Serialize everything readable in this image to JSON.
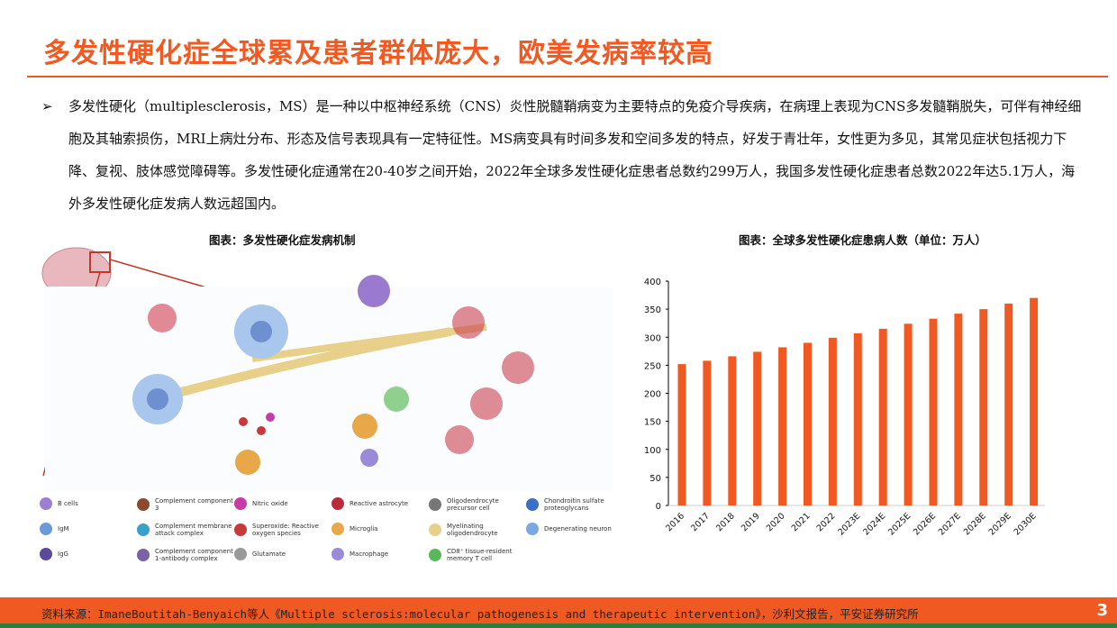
{
  "title": "多发性硬化症全球累及患者群体庞大，欧美发病率较高",
  "bullet": "➢",
  "paragraph": "多发性硬化（multiplesclerosis，MS）是一种以中枢神经系统（CNS）炎性脱髓鞘病变为主要特点的免疫介导疾病，在病理上表现为CNS多发髓鞘脱失，可伴有神经细胞及其轴索损伤，MRI上病灶分布、形态及信号表现具有一定特征性。MS病变具有时间多发和空间多发的特点，好发于青壮年，女性更为多见，其常见症状包括视力下降、复视、肢体感觉障碍等。多发性硬化症通常在20-40岁之间开始，2022年全球多发性硬化症患者总数约299万人，我国多发性硬化症患者总数2022年达5.1万人，海外多发性硬化症发病人数远超国内。",
  "left_chart_title": "图表：多发性硬化症发病机制",
  "legend": [
    {
      "label": "B cells",
      "color": "#9B7FD1"
    },
    {
      "label": "IgM",
      "color": "#6A9BD8"
    },
    {
      "label": "IgG",
      "color": "#5B4A9A"
    },
    {
      "label": "Complement component 3",
      "color": "#8B4A2B"
    },
    {
      "label": "Complement membrane attack complex",
      "color": "#3AA0C8"
    },
    {
      "label": "Complement component 1-antibody complex",
      "color": "#7A62A8"
    },
    {
      "label": "Nitric oxide",
      "color": "#C83AA8"
    },
    {
      "label": "Superoxide: Reactive oxygen species",
      "color": "#C83A3A"
    },
    {
      "label": "Glutamate",
      "color": "#999999"
    },
    {
      "label": "Reactive astrocyte",
      "color": "#B82B3A"
    },
    {
      "label": "Microglia",
      "color": "#E8A84A"
    },
    {
      "label": "Macrophage",
      "color": "#9A8AD8"
    },
    {
      "label": "Oligodendrocyte precursor cell",
      "color": "#777777"
    },
    {
      "label": "Myelinating oligodendrocyte",
      "color": "#E8D08A"
    },
    {
      "label": "CD8⁺ tissue-resident memory T cell",
      "color": "#5AB85A"
    },
    {
      "label": "Chondroitin sulfate proteoglycans",
      "color": "#3A70C8"
    },
    {
      "label": "Degenerating neuron",
      "color": "#7AA8E0"
    }
  ],
  "chart_data": {
    "type": "bar",
    "title": "图表：全球多发性硬化症患病人数（单位：万人）",
    "categories": [
      "2016",
      "2017",
      "2018",
      "2019",
      "2020",
      "2021",
      "2022",
      "2023E",
      "2024E",
      "2025E",
      "2026E",
      "2027E",
      "2028E",
      "2029E",
      "2030E"
    ],
    "values": [
      252,
      258,
      266,
      274,
      282,
      290,
      299,
      307,
      315,
      324,
      333,
      342,
      350,
      360,
      370
    ],
    "ylim": [
      0,
      400
    ],
    "yticks": [
      0,
      50,
      100,
      150,
      200,
      250,
      300,
      350,
      400
    ],
    "grid": false,
    "bar_color": "#F05A22"
  },
  "footer": {
    "source": "资料来源：ImaneBoutitah-Benyaich等人《Multiple sclerosis:molecular pathogenesis and therapeutic intervention》，沙利文报告，平安证券研究所",
    "page": "3"
  },
  "colors": {
    "accent": "#F05A22",
    "footer_line": "#2F7D3A"
  }
}
